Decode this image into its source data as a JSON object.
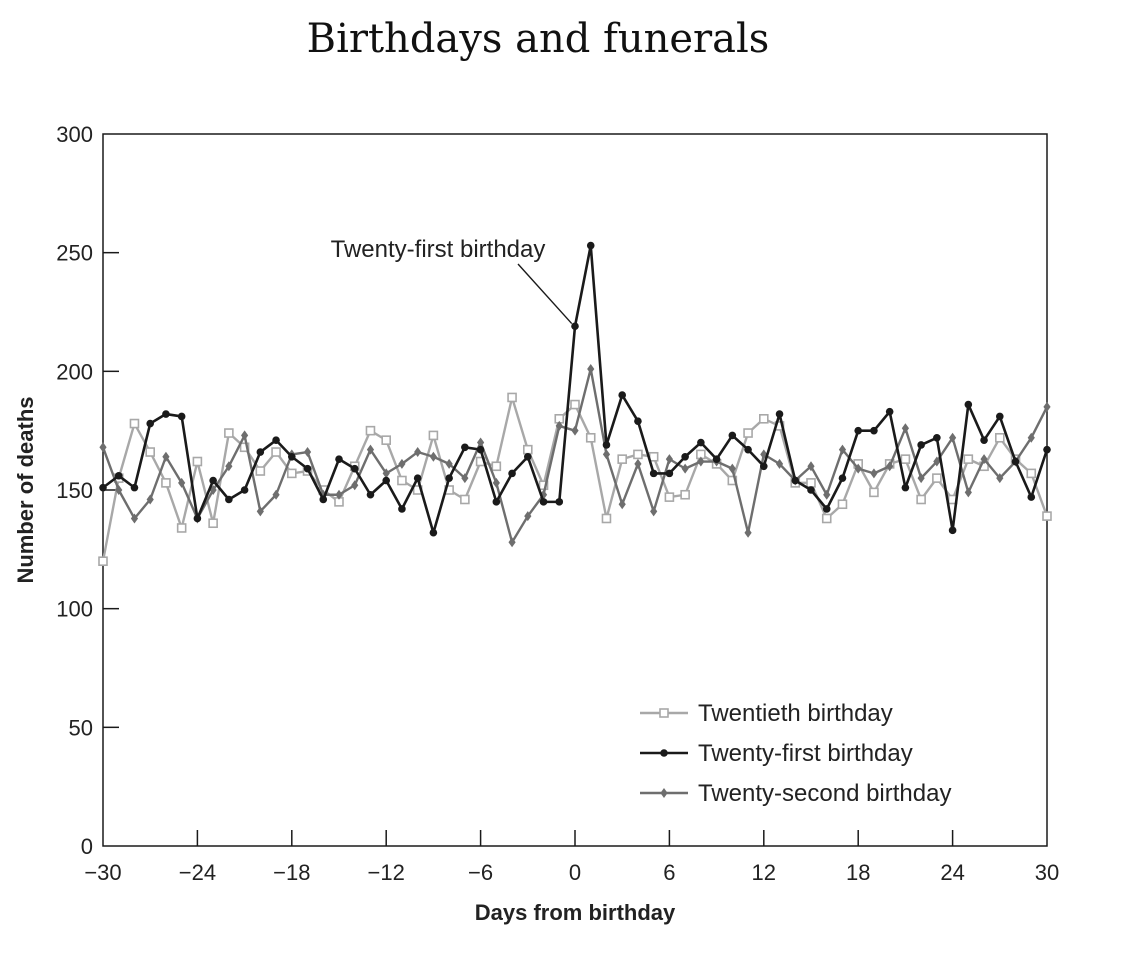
{
  "chart_data": {
    "type": "line",
    "title": "Birthdays and funerals",
    "xlabel": "Days from birthday",
    "ylabel": "Number of deaths",
    "xlim": [
      -30,
      30
    ],
    "ylim": [
      0,
      300
    ],
    "xticks": [
      -30,
      -24,
      -18,
      -12,
      -6,
      0,
      6,
      12,
      18,
      24,
      30
    ],
    "xtick_labels": [
      "−30",
      "−24",
      "−18",
      "−12",
      "−6",
      "0",
      "6",
      "12",
      "18",
      "24",
      "30"
    ],
    "yticks": [
      0,
      50,
      100,
      150,
      200,
      250,
      300
    ],
    "ytick_labels": [
      "0",
      "50",
      "100",
      "150",
      "200",
      "250",
      "300"
    ],
    "grid": false,
    "legend_position": "bottom-right",
    "x": [
      -30,
      -29,
      -28,
      -27,
      -26,
      -25,
      -24,
      -23,
      -22,
      -21,
      -20,
      -19,
      -18,
      -17,
      -16,
      -15,
      -14,
      -13,
      -12,
      -11,
      -10,
      -9,
      -8,
      -7,
      -6,
      -5,
      -4,
      -3,
      -2,
      -1,
      0,
      1,
      2,
      3,
      4,
      5,
      6,
      7,
      8,
      9,
      10,
      11,
      12,
      13,
      14,
      15,
      16,
      17,
      18,
      19,
      20,
      21,
      22,
      23,
      24,
      25,
      26,
      27,
      28,
      29,
      30
    ],
    "series": [
      {
        "name": "Twentieth birthday",
        "color": "#a8a8a8",
        "marker": "square-open",
        "values": [
          120,
          155,
          178,
          166,
          153,
          134,
          162,
          136,
          174,
          168,
          158,
          166,
          157,
          158,
          150,
          145,
          160,
          175,
          171,
          154,
          150,
          173,
          150,
          146,
          162,
          160,
          189,
          167,
          152,
          180,
          186,
          172,
          138,
          163,
          165,
          164,
          147,
          148,
          165,
          161,
          154,
          174,
          180,
          177,
          153,
          153,
          138,
          144,
          161,
          149,
          161,
          163,
          146,
          155,
          146,
          163,
          160,
          172,
          163,
          157,
          139
        ]
      },
      {
        "name": "Twenty-first birthday",
        "color": "#1a1a1a",
        "marker": "circle",
        "values": [
          151,
          156,
          151,
          178,
          182,
          181,
          138,
          154,
          146,
          150,
          166,
          171,
          164,
          159,
          146,
          163,
          159,
          148,
          154,
          142,
          155,
          132,
          155,
          168,
          167,
          145,
          157,
          164,
          145,
          145,
          219,
          253,
          169,
          190,
          179,
          157,
          157,
          164,
          170,
          163,
          173,
          167,
          160,
          182,
          154,
          150,
          142,
          155,
          175,
          175,
          183,
          151,
          169,
          172,
          133,
          186,
          171,
          181,
          162,
          147,
          167
        ]
      },
      {
        "name": "Twenty-second birthday",
        "color": "#6e6e6e",
        "marker": "diamond",
        "values": [
          168,
          150,
          138,
          146,
          164,
          153,
          138,
          150,
          160,
          173,
          141,
          148,
          165,
          166,
          148,
          148,
          152,
          167,
          157,
          161,
          166,
          164,
          161,
          155,
          170,
          153,
          128,
          139,
          148,
          177,
          175,
          201,
          165,
          144,
          161,
          141,
          163,
          159,
          162,
          162,
          159,
          132,
          165,
          161,
          154,
          160,
          148,
          167,
          159,
          157,
          160,
          176,
          155,
          162,
          172,
          149,
          163,
          155,
          162,
          172,
          185
        ]
      }
    ],
    "annotations": [
      {
        "text": "Twenty-first birthday",
        "x": 1,
        "y": 253
      }
    ]
  }
}
